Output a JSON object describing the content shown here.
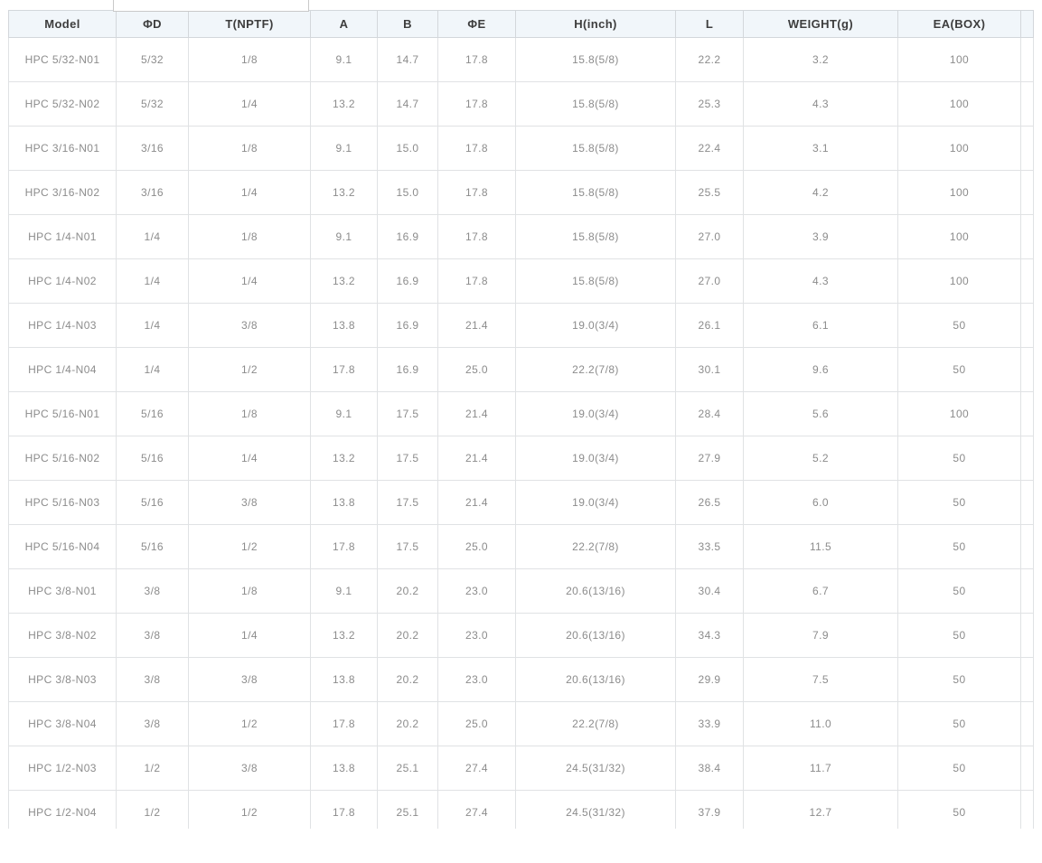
{
  "theme": {
    "page_bg": "#ffffff",
    "header_bg": "#f1f6fa",
    "header_text_color": "#3d3d3d",
    "cell_text_color": "#8c8c8c",
    "grid_line_color": "#dfe2e5"
  },
  "spec_table": {
    "columns": [
      {
        "key": "model",
        "label": "Model"
      },
      {
        "key": "d",
        "label": "ΦD"
      },
      {
        "key": "t",
        "label": "T(NPTF)"
      },
      {
        "key": "a",
        "label": "A"
      },
      {
        "key": "b",
        "label": "B"
      },
      {
        "key": "e",
        "label": "ΦE"
      },
      {
        "key": "h",
        "label": "H(inch)"
      },
      {
        "key": "l",
        "label": "L"
      },
      {
        "key": "weight",
        "label": "WEIGHT(g)"
      },
      {
        "key": "ea",
        "label": "EA(BOX)"
      }
    ],
    "rows": [
      [
        "HPC 5/32-N01",
        "5/32",
        "1/8",
        "9.1",
        "14.7",
        "17.8",
        "15.8(5/8)",
        "22.2",
        "3.2",
        "100"
      ],
      [
        "HPC 5/32-N02",
        "5/32",
        "1/4",
        "13.2",
        "14.7",
        "17.8",
        "15.8(5/8)",
        "25.3",
        "4.3",
        "100"
      ],
      [
        "HPC 3/16-N01",
        "3/16",
        "1/8",
        "9.1",
        "15.0",
        "17.8",
        "15.8(5/8)",
        "22.4",
        "3.1",
        "100"
      ],
      [
        "HPC 3/16-N02",
        "3/16",
        "1/4",
        "13.2",
        "15.0",
        "17.8",
        "15.8(5/8)",
        "25.5",
        "4.2",
        "100"
      ],
      [
        "HPC 1/4-N01",
        "1/4",
        "1/8",
        "9.1",
        "16.9",
        "17.8",
        "15.8(5/8)",
        "27.0",
        "3.9",
        "100"
      ],
      [
        "HPC 1/4-N02",
        "1/4",
        "1/4",
        "13.2",
        "16.9",
        "17.8",
        "15.8(5/8)",
        "27.0",
        "4.3",
        "100"
      ],
      [
        "HPC 1/4-N03",
        "1/4",
        "3/8",
        "13.8",
        "16.9",
        "21.4",
        "19.0(3/4)",
        "26.1",
        "6.1",
        "50"
      ],
      [
        "HPC 1/4-N04",
        "1/4",
        "1/2",
        "17.8",
        "16.9",
        "25.0",
        "22.2(7/8)",
        "30.1",
        "9.6",
        "50"
      ],
      [
        "HPC 5/16-N01",
        "5/16",
        "1/8",
        "9.1",
        "17.5",
        "21.4",
        "19.0(3/4)",
        "28.4",
        "5.6",
        "100"
      ],
      [
        "HPC 5/16-N02",
        "5/16",
        "1/4",
        "13.2",
        "17.5",
        "21.4",
        "19.0(3/4)",
        "27.9",
        "5.2",
        "50"
      ],
      [
        "HPC 5/16-N03",
        "5/16",
        "3/8",
        "13.8",
        "17.5",
        "21.4",
        "19.0(3/4)",
        "26.5",
        "6.0",
        "50"
      ],
      [
        "HPC 5/16-N04",
        "5/16",
        "1/2",
        "17.8",
        "17.5",
        "25.0",
        "22.2(7/8)",
        "33.5",
        "11.5",
        "50"
      ],
      [
        "HPC 3/8-N01",
        "3/8",
        "1/8",
        "9.1",
        "20.2",
        "23.0",
        "20.6(13/16)",
        "30.4",
        "6.7",
        "50"
      ],
      [
        "HPC 3/8-N02",
        "3/8",
        "1/4",
        "13.2",
        "20.2",
        "23.0",
        "20.6(13/16)",
        "34.3",
        "7.9",
        "50"
      ],
      [
        "HPC 3/8-N03",
        "3/8",
        "3/8",
        "13.8",
        "20.2",
        "23.0",
        "20.6(13/16)",
        "29.9",
        "7.5",
        "50"
      ],
      [
        "HPC 3/8-N04",
        "3/8",
        "1/2",
        "17.8",
        "20.2",
        "25.0",
        "22.2(7/8)",
        "33.9",
        "11.0",
        "50"
      ],
      [
        "HPC 1/2-N03",
        "1/2",
        "3/8",
        "13.8",
        "25.1",
        "27.4",
        "24.5(31/32)",
        "38.4",
        "11.7",
        "50"
      ],
      [
        "HPC 1/2-N04",
        "1/2",
        "1/2",
        "17.8",
        "25.1",
        "27.4",
        "24.5(31/32)",
        "37.9",
        "12.7",
        "50"
      ]
    ]
  }
}
